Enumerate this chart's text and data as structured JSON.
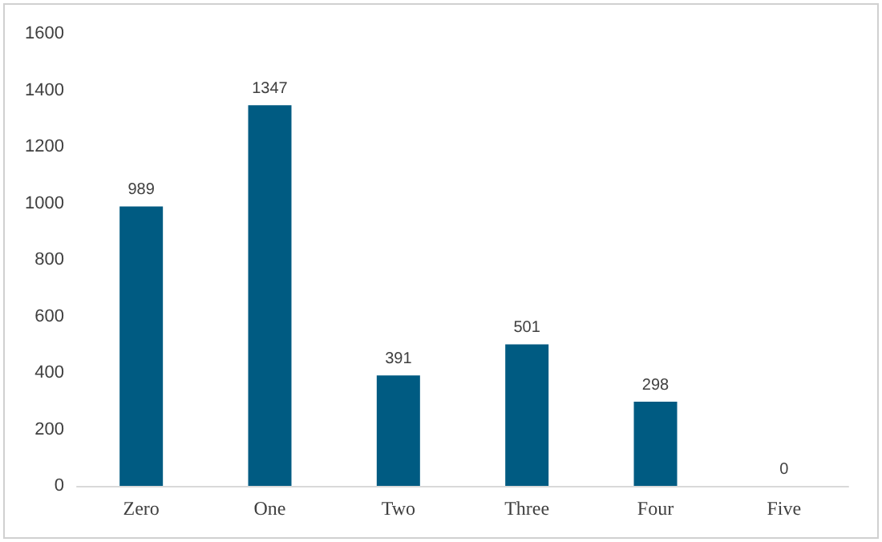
{
  "chart_data": {
    "type": "bar",
    "categories": [
      "Zero",
      "One",
      "Two",
      "Three",
      "Four",
      "Five"
    ],
    "values": [
      989,
      1347,
      391,
      501,
      298,
      0
    ],
    "color": "#005b82",
    "ylim": [
      0,
      1600
    ],
    "yticks": [
      0,
      200,
      400,
      600,
      800,
      1000,
      1200,
      1400,
      1600
    ],
    "grid": false,
    "data_labels": true
  }
}
